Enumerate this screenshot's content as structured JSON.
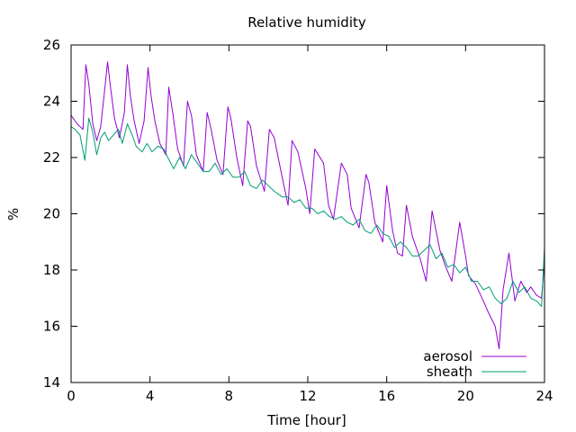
{
  "chart_data": {
    "type": "line",
    "title": "Relative humidity",
    "xlabel": "Time [hour]",
    "ylabel": "%",
    "xlim": [
      0,
      24
    ],
    "ylim": [
      14,
      26
    ],
    "x_ticks": [
      0,
      4,
      8,
      12,
      16,
      20,
      24
    ],
    "y_ticks": [
      14,
      16,
      18,
      20,
      22,
      24,
      26
    ],
    "grid": false,
    "legend_position": "bottom-right",
    "series": [
      {
        "name": "aerosol",
        "color": "#9400d3",
        "x": [
          0,
          0.3,
          0.6,
          0.75,
          0.9,
          1.1,
          1.3,
          1.5,
          1.7,
          1.85,
          2.0,
          2.2,
          2.45,
          2.7,
          2.85,
          3.0,
          3.2,
          3.45,
          3.7,
          3.9,
          4.05,
          4.25,
          4.5,
          4.8,
          4.95,
          5.15,
          5.4,
          5.7,
          5.9,
          6.1,
          6.35,
          6.7,
          6.9,
          7.1,
          7.4,
          7.7,
          7.95,
          8.1,
          8.4,
          8.7,
          8.95,
          9.1,
          9.4,
          9.8,
          10.05,
          10.3,
          10.7,
          11.0,
          11.2,
          11.5,
          11.9,
          12.1,
          12.35,
          12.8,
          13.05,
          13.3,
          13.7,
          14.0,
          14.2,
          14.6,
          14.95,
          15.1,
          15.4,
          15.8,
          16.0,
          16.3,
          16.55,
          16.8,
          17.0,
          17.3,
          17.7,
          18.0,
          18.3,
          18.7,
          19.0,
          19.3,
          19.7,
          20.0,
          20.15,
          20.5,
          20.9,
          21.15,
          21.5,
          21.7,
          21.9,
          22.2,
          22.5,
          22.8,
          23.1,
          23.3,
          23.6,
          23.85,
          24.0
        ],
        "values": [
          23.5,
          23.2,
          23.0,
          25.3,
          24.6,
          23.2,
          22.6,
          23.1,
          24.4,
          25.4,
          24.5,
          23.4,
          22.7,
          23.6,
          25.3,
          24.2,
          23.3,
          22.5,
          23.3,
          25.2,
          24.2,
          23.3,
          22.5,
          22.1,
          24.5,
          23.6,
          22.3,
          21.7,
          24.0,
          23.5,
          22.1,
          21.5,
          23.6,
          23.0,
          21.9,
          21.4,
          23.8,
          23.4,
          22.0,
          21.0,
          23.3,
          23.1,
          21.7,
          20.8,
          23.0,
          22.7,
          21.3,
          20.3,
          22.6,
          22.2,
          20.9,
          20.0,
          22.3,
          21.8,
          20.3,
          19.8,
          21.8,
          21.4,
          20.2,
          19.5,
          21.4,
          21.1,
          19.7,
          19.0,
          21.0,
          19.4,
          18.6,
          18.5,
          20.3,
          19.2,
          18.4,
          17.6,
          20.1,
          18.7,
          18.1,
          17.6,
          19.7,
          18.5,
          17.8,
          17.5,
          16.9,
          16.5,
          16.0,
          15.2,
          17.3,
          18.6,
          16.9,
          17.6,
          17.2,
          17.4,
          17.1,
          17.0,
          18.3
        ]
      },
      {
        "name": "sheath",
        "color": "#009e73",
        "x": [
          0,
          0.2,
          0.45,
          0.7,
          0.9,
          1.1,
          1.3,
          1.5,
          1.7,
          1.9,
          2.15,
          2.4,
          2.6,
          2.85,
          3.1,
          3.3,
          3.6,
          3.85,
          4.1,
          4.4,
          4.7,
          4.9,
          5.2,
          5.5,
          5.8,
          6.1,
          6.4,
          6.7,
          7.0,
          7.3,
          7.6,
          7.9,
          8.2,
          8.5,
          8.8,
          9.1,
          9.4,
          9.7,
          10.0,
          10.3,
          10.7,
          11.0,
          11.3,
          11.6,
          11.9,
          12.2,
          12.5,
          12.8,
          13.1,
          13.4,
          13.7,
          14.0,
          14.3,
          14.6,
          14.9,
          15.2,
          15.5,
          15.8,
          16.1,
          16.4,
          16.7,
          17.0,
          17.3,
          17.6,
          17.9,
          18.2,
          18.5,
          18.8,
          19.1,
          19.4,
          19.7,
          20.0,
          20.3,
          20.6,
          20.9,
          21.2,
          21.5,
          21.8,
          22.1,
          22.4,
          22.7,
          23.0,
          23.3,
          23.6,
          23.85,
          24.0
        ],
        "values": [
          23.1,
          23.0,
          22.8,
          21.9,
          23.4,
          22.9,
          22.1,
          22.7,
          22.9,
          22.6,
          22.8,
          23.0,
          22.5,
          23.2,
          22.8,
          22.4,
          22.2,
          22.5,
          22.2,
          22.4,
          22.3,
          22.0,
          21.6,
          22.0,
          21.6,
          22.1,
          21.8,
          21.5,
          21.5,
          21.8,
          21.4,
          21.6,
          21.3,
          21.3,
          21.5,
          21.0,
          20.9,
          21.2,
          21.0,
          20.8,
          20.6,
          20.6,
          20.4,
          20.5,
          20.2,
          20.2,
          20.0,
          20.1,
          19.9,
          19.8,
          19.9,
          19.7,
          19.6,
          19.8,
          19.4,
          19.3,
          19.6,
          19.3,
          19.2,
          18.8,
          19.0,
          18.8,
          18.5,
          18.5,
          18.7,
          18.9,
          18.4,
          18.6,
          18.1,
          18.2,
          17.9,
          18.1,
          17.6,
          17.6,
          17.3,
          17.4,
          17.0,
          16.8,
          17.0,
          17.6,
          17.2,
          17.4,
          17.0,
          16.9,
          16.7,
          18.8
        ]
      }
    ]
  }
}
